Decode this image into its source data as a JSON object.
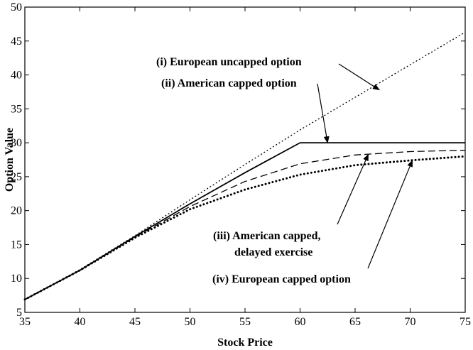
{
  "chart_data": {
    "type": "line",
    "xlabel": "Stock Price",
    "ylabel": "Option Value",
    "xlim": [
      35,
      75
    ],
    "ylim": [
      5,
      50
    ],
    "xticks": [
      35,
      40,
      45,
      50,
      55,
      60,
      65,
      70,
      75
    ],
    "yticks": [
      5,
      10,
      15,
      20,
      25,
      30,
      35,
      40,
      45,
      50
    ],
    "grid": false,
    "legend": "none",
    "series": [
      {
        "name": "(i) European uncapped option",
        "style": "dotted",
        "x": [
          35,
          40,
          45,
          50,
          55,
          60,
          65,
          70,
          75
        ],
        "y": [
          6.9,
          11.3,
          16.3,
          21.6,
          26.8,
          31.9,
          36.7,
          41.5,
          46.3
        ]
      },
      {
        "name": "(ii) American capped option",
        "style": "solid",
        "x": [
          35,
          40,
          45,
          50,
          55,
          60,
          65,
          70,
          75
        ],
        "y": [
          6.9,
          11.2,
          16.2,
          21.0,
          25.6,
          30.0,
          30.0,
          30.0,
          30.0
        ]
      },
      {
        "name": "(iii) American capped, delayed exercise",
        "style": "dashed",
        "x": [
          35,
          40,
          45,
          50,
          55,
          60,
          65,
          70,
          75
        ],
        "y": [
          6.9,
          11.2,
          16.1,
          20.6,
          24.3,
          26.9,
          28.2,
          28.7,
          28.9
        ]
      },
      {
        "name": "(iv) European capped option",
        "style": "bold-dotted",
        "x": [
          35,
          40,
          45,
          50,
          55,
          60,
          65,
          70,
          75
        ],
        "y": [
          6.9,
          11.2,
          16.0,
          20.2,
          23.1,
          25.3,
          26.7,
          27.4,
          28.0
        ]
      }
    ],
    "annotations": [
      {
        "label": "(i) European uncapped option",
        "target": [
          67.2,
          37.8
        ]
      },
      {
        "label": "(ii) American capped option",
        "target": [
          62.5,
          30.0
        ]
      },
      {
        "label": "(iii) American capped,",
        "label2": "delayed exercise",
        "target": [
          66.2,
          28.3
        ]
      },
      {
        "label": "(iv) European capped option",
        "target": [
          70.2,
          27.4
        ]
      }
    ]
  }
}
